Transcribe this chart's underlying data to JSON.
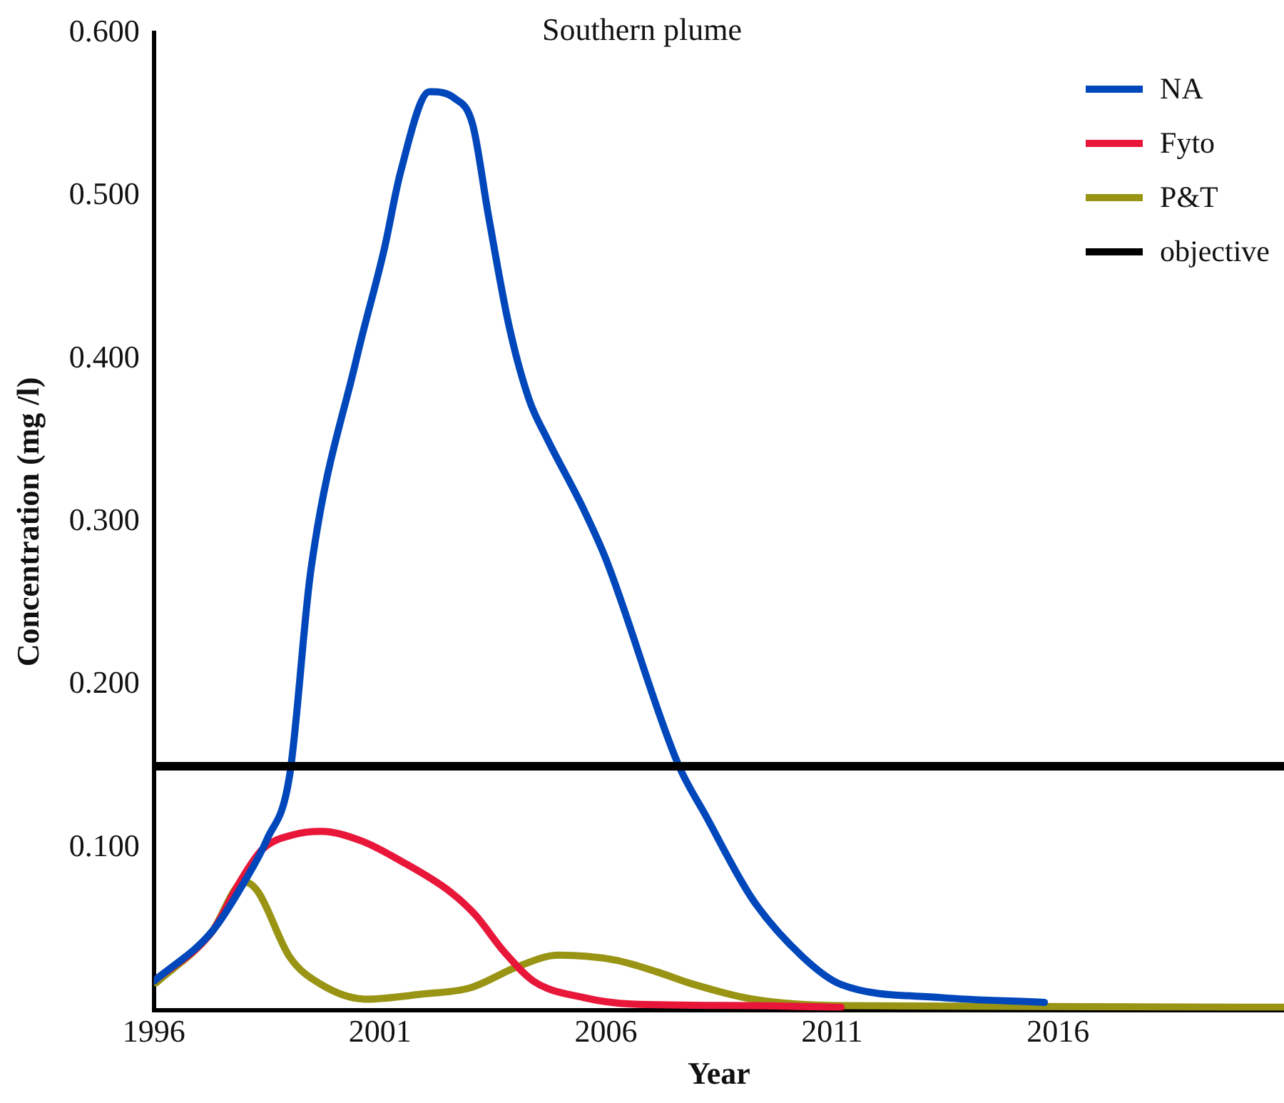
{
  "chart_data": {
    "type": "line",
    "title": "Southern plume",
    "xlabel": "Year",
    "ylabel": "Concentration (mg /l)",
    "xlim": [
      1996,
      2021
    ],
    "xticks": [
      1996,
      2001,
      2006,
      2011,
      2016
    ],
    "ylim": [
      0,
      0.6
    ],
    "yticks": [
      {
        "value": 0.1,
        "label": "0.100"
      },
      {
        "value": 0.2,
        "label": "0.200"
      },
      {
        "value": 0.3,
        "label": "0.300"
      },
      {
        "value": 0.4,
        "label": "0.400"
      },
      {
        "value": 0.5,
        "label": "0.500"
      },
      {
        "value": 0.6,
        "label": "0.600"
      }
    ],
    "grid": false,
    "legend": "top right",
    "marker": "none",
    "line_style": "solid",
    "series": [
      {
        "name": "NA",
        "color": "#0047bb",
        "x": [
          1996,
          1997.3,
          1998,
          1998.5,
          1999,
          1999.47,
          2000.48,
          2001.1,
          2001.45,
          2002.1,
          2002.65,
          2003.05,
          2003.4,
          2003.85,
          2004.3,
          2004.7,
          2005.5,
          2006,
          2007.6,
          2008.2,
          2009.25,
          2010.35,
          2011.2,
          2013.4,
          2015.7
        ],
        "values": [
          0.018,
          0.049,
          0.079,
          0.105,
          0.144,
          0.27,
          0.4,
          0.468,
          0.514,
          0.564,
          0.56,
          0.544,
          0.488,
          0.421,
          0.375,
          0.351,
          0.308,
          0.277,
          0.151,
          0.12,
          0.068,
          0.033,
          0.016,
          0.008,
          0.005
        ]
      },
      {
        "name": "Fyto",
        "color": "#e8173a",
        "x": [
          1996,
          1997.3,
          1997.9,
          1998.4,
          1999.1,
          1999.7,
          2000.6,
          2001.45,
          2002.55,
          2003.1,
          2003.75,
          2004.4,
          2005.5,
          2006.55,
          2009.25,
          2011.2
        ],
        "values": [
          0.018,
          0.049,
          0.079,
          0.099,
          0.108,
          0.11,
          0.104,
          0.092,
          0.073,
          0.059,
          0.036,
          0.018,
          0.008,
          0.004,
          0.003,
          0.002
        ]
      },
      {
        "name": "P&T",
        "color": "#999413",
        "x": [
          1996.05,
          1997.25,
          1998,
          1998.3,
          1999,
          1999.7,
          2000.7,
          2001.9,
          2003,
          2004.05,
          2004.95,
          2006.2,
          2007.1,
          2007.95,
          2009.25,
          2011.2,
          2021
        ],
        "values": [
          0.017,
          0.047,
          0.079,
          0.073,
          0.033,
          0.016,
          0.007,
          0.01,
          0.014,
          0.027,
          0.034,
          0.031,
          0.024,
          0.016,
          0.007,
          0.003,
          0.002
        ]
      }
    ],
    "ref_lines": [
      {
        "axis": "y",
        "value": 0.15,
        "label": "objective",
        "color": "#000000",
        "line_style": "solid"
      }
    ]
  }
}
